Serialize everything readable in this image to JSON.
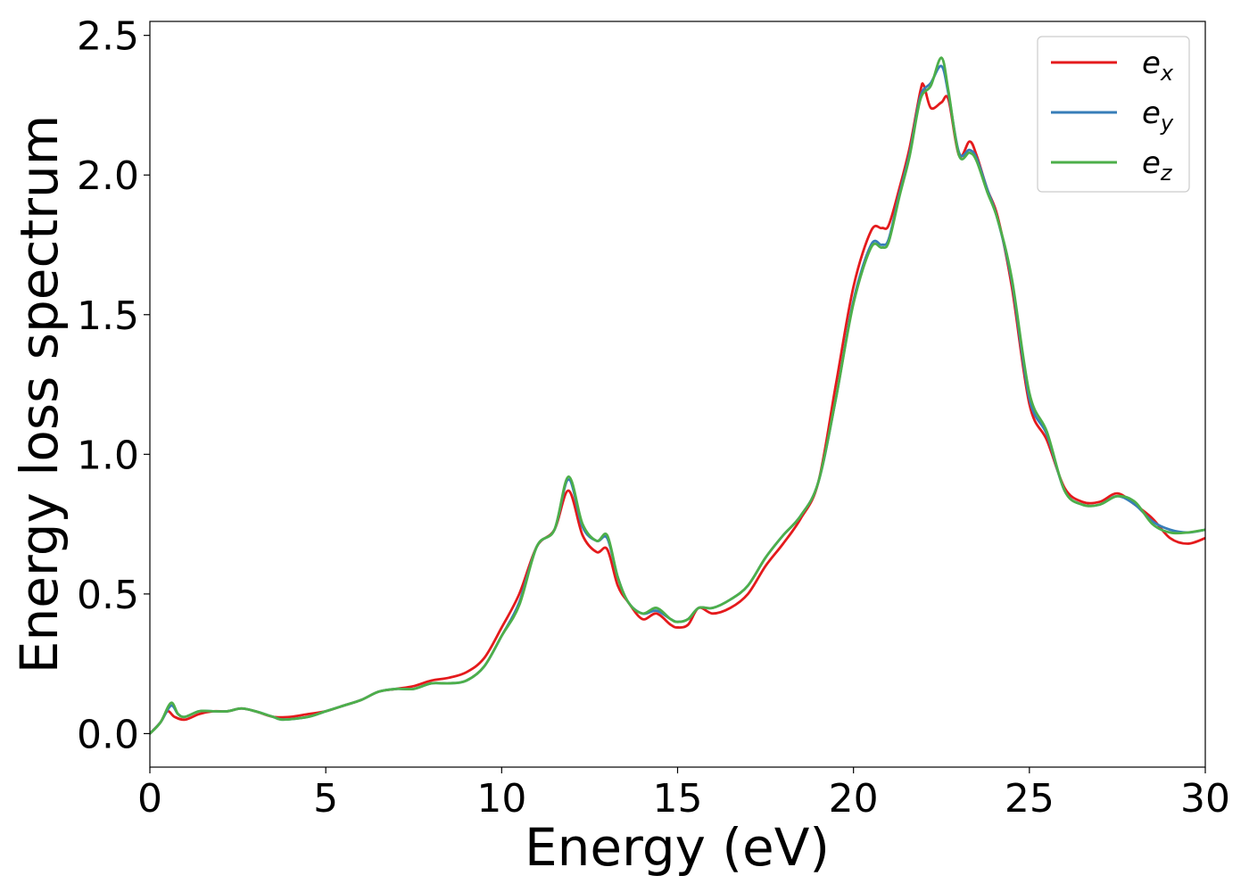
{
  "chart_data": {
    "type": "line",
    "title": "",
    "xlabel": "Energy (eV)",
    "ylabel": "Energy loss spectrum",
    "xlim": [
      0,
      30
    ],
    "ylim": [
      -0.12,
      2.55
    ],
    "xticks": [
      0,
      5,
      10,
      15,
      20,
      25,
      30
    ],
    "xtick_labels": [
      "0",
      "5",
      "10",
      "15",
      "20",
      "25",
      "30"
    ],
    "yticks": [
      0.0,
      0.5,
      1.0,
      1.5,
      2.0,
      2.5
    ],
    "ytick_labels": [
      "0.0",
      "0.5",
      "1.0",
      "1.5",
      "2.0",
      "2.5"
    ],
    "grid": false,
    "legend_position": "top-right",
    "series": [
      {
        "name": "e_x",
        "label_base": "e",
        "label_sub": "x",
        "color": "#e41a1c",
        "x": [
          0,
          0.3,
          0.5,
          0.7,
          1.0,
          1.4,
          1.8,
          2.2,
          2.6,
          3.0,
          3.5,
          4.0,
          4.5,
          5.0,
          5.5,
          6.0,
          6.5,
          7.0,
          7.5,
          8.0,
          8.5,
          9.0,
          9.5,
          10.0,
          10.5,
          11.0,
          11.5,
          11.9,
          12.3,
          12.7,
          13.0,
          13.3,
          13.6,
          14.0,
          14.4,
          14.8,
          15.0,
          15.3,
          15.6,
          16.0,
          16.5,
          17.0,
          17.5,
          18.0,
          18.5,
          19.0,
          19.5,
          20.0,
          20.5,
          20.8,
          21.0,
          21.3,
          21.6,
          21.9,
          22.0,
          22.2,
          22.5,
          22.7,
          23.0,
          23.3,
          23.5,
          23.8,
          24.1,
          24.5,
          25.0,
          25.5,
          26.0,
          26.5,
          27.0,
          27.5,
          28.0,
          28.5,
          29.0,
          29.5,
          30.0
        ],
        "values": [
          0.0,
          0.04,
          0.08,
          0.06,
          0.05,
          0.07,
          0.08,
          0.08,
          0.09,
          0.08,
          0.06,
          0.06,
          0.07,
          0.08,
          0.1,
          0.12,
          0.15,
          0.16,
          0.17,
          0.19,
          0.2,
          0.22,
          0.27,
          0.38,
          0.5,
          0.67,
          0.73,
          0.87,
          0.71,
          0.65,
          0.66,
          0.53,
          0.47,
          0.41,
          0.43,
          0.39,
          0.38,
          0.39,
          0.45,
          0.43,
          0.45,
          0.5,
          0.6,
          0.68,
          0.77,
          0.9,
          1.25,
          1.6,
          1.8,
          1.81,
          1.82,
          1.95,
          2.1,
          2.3,
          2.32,
          2.24,
          2.26,
          2.27,
          2.07,
          2.12,
          2.07,
          1.95,
          1.85,
          1.6,
          1.18,
          1.05,
          0.88,
          0.83,
          0.83,
          0.86,
          0.82,
          0.77,
          0.7,
          0.68,
          0.7
        ]
      },
      {
        "name": "e_y",
        "label_base": "e",
        "label_sub": "y",
        "color": "#377eb8",
        "x": [
          0,
          0.3,
          0.6,
          0.8,
          1.0,
          1.4,
          1.8,
          2.2,
          2.6,
          3.0,
          3.5,
          3.8,
          4.5,
          5.0,
          5.5,
          6.0,
          6.5,
          7.0,
          7.5,
          8.0,
          8.5,
          9.0,
          9.5,
          10.0,
          10.5,
          11.0,
          11.5,
          11.9,
          12.3,
          12.7,
          13.0,
          13.3,
          13.6,
          14.0,
          14.4,
          14.8,
          15.0,
          15.3,
          15.6,
          16.0,
          16.5,
          17.0,
          17.5,
          18.0,
          18.5,
          19.0,
          19.5,
          20.0,
          20.5,
          20.8,
          21.0,
          21.3,
          21.6,
          21.9,
          22.2,
          22.5,
          22.7,
          23.0,
          23.3,
          23.5,
          23.8,
          24.1,
          24.5,
          25.0,
          25.5,
          26.0,
          26.5,
          27.0,
          27.5,
          28.0,
          28.5,
          29.0,
          29.5,
          30.0
        ],
        "values": [
          0.0,
          0.04,
          0.1,
          0.07,
          0.06,
          0.08,
          0.08,
          0.08,
          0.09,
          0.08,
          0.06,
          0.05,
          0.06,
          0.08,
          0.1,
          0.12,
          0.15,
          0.16,
          0.16,
          0.18,
          0.18,
          0.19,
          0.24,
          0.35,
          0.47,
          0.67,
          0.73,
          0.91,
          0.74,
          0.69,
          0.7,
          0.56,
          0.47,
          0.43,
          0.44,
          0.41,
          0.4,
          0.41,
          0.45,
          0.45,
          0.48,
          0.53,
          0.63,
          0.71,
          0.78,
          0.9,
          1.2,
          1.55,
          1.75,
          1.75,
          1.77,
          1.93,
          2.08,
          2.28,
          2.33,
          2.39,
          2.29,
          2.08,
          2.09,
          2.06,
          1.95,
          1.84,
          1.62,
          1.2,
          1.07,
          0.87,
          0.82,
          0.82,
          0.85,
          0.82,
          0.76,
          0.73,
          0.72,
          0.73
        ]
      },
      {
        "name": "e_z",
        "label_base": "e",
        "label_sub": "z",
        "color": "#4daf4a",
        "x": [
          0,
          0.3,
          0.6,
          0.8,
          1.0,
          1.4,
          1.8,
          2.2,
          2.6,
          3.0,
          3.5,
          3.8,
          4.5,
          5.0,
          5.5,
          6.0,
          6.5,
          7.0,
          7.5,
          8.0,
          8.5,
          9.0,
          9.5,
          10.0,
          10.5,
          11.0,
          11.5,
          11.9,
          12.3,
          12.7,
          13.0,
          13.3,
          13.6,
          14.0,
          14.4,
          14.8,
          15.0,
          15.3,
          15.6,
          16.0,
          16.5,
          17.0,
          17.5,
          18.0,
          18.5,
          19.0,
          19.5,
          20.0,
          20.5,
          20.8,
          21.0,
          21.3,
          21.6,
          21.9,
          22.2,
          22.5,
          22.7,
          23.0,
          23.3,
          23.5,
          23.8,
          24.1,
          24.5,
          25.0,
          25.5,
          26.0,
          26.5,
          27.0,
          27.5,
          28.0,
          28.5,
          29.0,
          29.5,
          30.0
        ],
        "values": [
          0.0,
          0.04,
          0.11,
          0.07,
          0.06,
          0.08,
          0.08,
          0.08,
          0.09,
          0.08,
          0.06,
          0.05,
          0.06,
          0.08,
          0.1,
          0.12,
          0.15,
          0.16,
          0.16,
          0.18,
          0.18,
          0.19,
          0.24,
          0.35,
          0.46,
          0.67,
          0.73,
          0.92,
          0.75,
          0.69,
          0.71,
          0.56,
          0.47,
          0.43,
          0.45,
          0.41,
          0.4,
          0.41,
          0.45,
          0.45,
          0.48,
          0.53,
          0.63,
          0.71,
          0.78,
          0.9,
          1.2,
          1.54,
          1.74,
          1.74,
          1.76,
          1.92,
          2.07,
          2.27,
          2.32,
          2.42,
          2.3,
          2.07,
          2.08,
          2.05,
          1.94,
          1.84,
          1.63,
          1.22,
          1.08,
          0.87,
          0.82,
          0.82,
          0.85,
          0.83,
          0.75,
          0.72,
          0.72,
          0.73
        ]
      }
    ]
  }
}
